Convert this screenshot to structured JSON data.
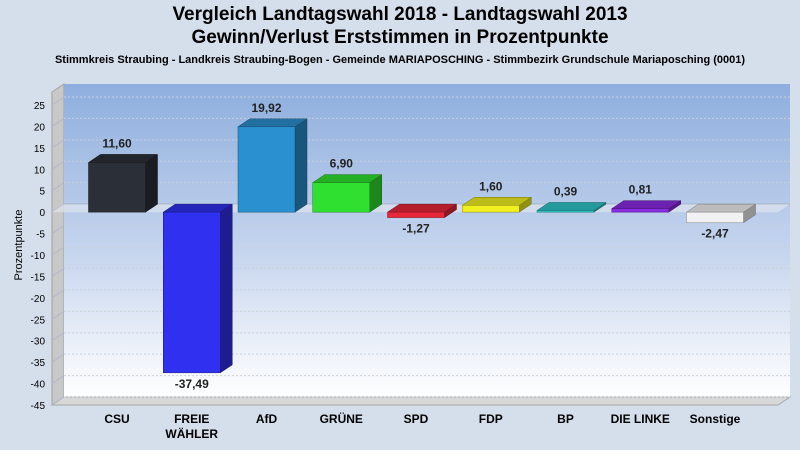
{
  "titles": {
    "line1": "Vergleich Landtagswahl 2018 - Landtagswahl 2013",
    "line2": "Gewinn/Verlust Erststimmen in Prozentpunkte",
    "subtitle": "Stimmkreis Straubing - Landkreis Straubing-Bogen - Gemeinde MARIAPOSCHING - Stimmbezirk Grundschule Mariaposching (0001)"
  },
  "chart_data": {
    "type": "bar",
    "ylabel": "Prozentpunkte",
    "xlabel": "",
    "ylim": [
      -45,
      25
    ],
    "yticks": [
      25,
      20,
      15,
      10,
      5,
      0,
      -5,
      -10,
      -15,
      -20,
      -25,
      -30,
      -35,
      -40,
      -45
    ],
    "grid": true,
    "categories": [
      "CSU",
      "FREIE WÄHLER",
      "AfD",
      "GRÜNE",
      "SPD",
      "FDP",
      "BP",
      "DIE LINKE",
      "Sonstige"
    ],
    "category_lines": [
      [
        "CSU"
      ],
      [
        "FREIE",
        "WÄHLER"
      ],
      [
        "AfD"
      ],
      [
        "GRÜNE"
      ],
      [
        "SPD"
      ],
      [
        "FDP"
      ],
      [
        "BP"
      ],
      [
        "DIE LINKE"
      ],
      [
        "Sonstige"
      ]
    ],
    "values": [
      11.6,
      -37.49,
      19.92,
      6.9,
      -1.27,
      1.6,
      0.39,
      0.81,
      -2.47
    ],
    "value_labels": [
      "11,60",
      "-37,49",
      "19,92",
      "6,90",
      "-1,27",
      "1,60",
      "0,39",
      "0,81",
      "-2,47"
    ],
    "colors": [
      "#2b2f38",
      "#3030f0",
      "#2a90cf",
      "#30e030",
      "#e8283a",
      "#f0f020",
      "#2ec6c8",
      "#8a2be2",
      "#f2f2f2"
    ]
  }
}
